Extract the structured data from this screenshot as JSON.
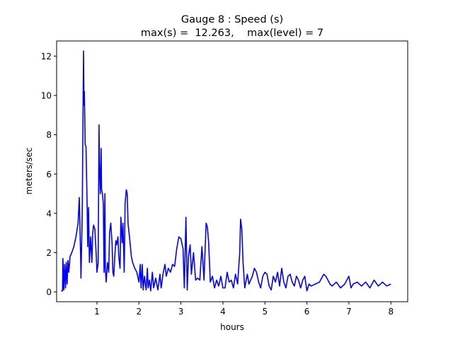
{
  "chart_data": {
    "type": "line",
    "title": "Gauge 8 : Speed (s)",
    "subtitle": "max(s) =  12.263,    max(level) = 7",
    "xlabel": "hours",
    "ylabel": "meters/sec",
    "xlim": [
      0.04,
      8.4
    ],
    "ylim": [
      -0.5,
      12.77
    ],
    "xticks": [
      1,
      2,
      3,
      4,
      5,
      6,
      7,
      8
    ],
    "yticks": [
      0,
      2,
      4,
      6,
      8,
      10,
      12
    ],
    "grid": false,
    "series": [
      {
        "name": "speed",
        "color": "#0000ff",
        "points": [
          [
            0.15,
            0.05
          ],
          [
            0.18,
            0.05
          ],
          [
            0.19,
            1.7
          ],
          [
            0.21,
            0.1
          ],
          [
            0.23,
            1.4
          ],
          [
            0.25,
            0.2
          ],
          [
            0.27,
            1.5
          ],
          [
            0.29,
            0.4
          ],
          [
            0.31,
            1.6
          ],
          [
            0.33,
            1.0
          ],
          [
            0.36,
            1.8
          ],
          [
            0.4,
            2.0
          ],
          [
            0.45,
            2.3
          ],
          [
            0.5,
            2.8
          ],
          [
            0.55,
            3.5
          ],
          [
            0.58,
            4.8
          ],
          [
            0.61,
            2.0
          ],
          [
            0.62,
            0.7
          ],
          [
            0.65,
            4.0
          ],
          [
            0.68,
            12.26
          ],
          [
            0.69,
            9.5
          ],
          [
            0.7,
            10.2
          ],
          [
            0.71,
            8.8
          ],
          [
            0.72,
            7.5
          ],
          [
            0.74,
            7.4
          ],
          [
            0.75,
            6.3
          ],
          [
            0.77,
            4.0
          ],
          [
            0.78,
            2.3
          ],
          [
            0.8,
            4.3
          ],
          [
            0.82,
            1.5
          ],
          [
            0.85,
            2.8
          ],
          [
            0.88,
            1.5
          ],
          [
            0.9,
            3.0
          ],
          [
            0.92,
            3.4
          ],
          [
            0.95,
            3.2
          ],
          [
            0.98,
            2.0
          ],
          [
            1.0,
            1.0
          ],
          [
            1.03,
            1.5
          ],
          [
            1.05,
            8.5
          ],
          [
            1.06,
            6.5
          ],
          [
            1.08,
            5.0
          ],
          [
            1.1,
            7.3
          ],
          [
            1.11,
            5.2
          ],
          [
            1.13,
            5.0
          ],
          [
            1.15,
            4.5
          ],
          [
            1.17,
            1.0
          ],
          [
            1.19,
            5.0
          ],
          [
            1.2,
            1.2
          ],
          [
            1.22,
            0.5
          ],
          [
            1.25,
            1.5
          ],
          [
            1.28,
            1.0
          ],
          [
            1.3,
            3.0
          ],
          [
            1.33,
            3.5
          ],
          [
            1.36,
            2.5
          ],
          [
            1.38,
            1.0
          ],
          [
            1.4,
            0.8
          ],
          [
            1.43,
            2.0
          ],
          [
            1.45,
            2.6
          ],
          [
            1.47,
            2.4
          ],
          [
            1.5,
            2.8
          ],
          [
            1.52,
            1.8
          ],
          [
            1.55,
            1.2
          ],
          [
            1.57,
            3.8
          ],
          [
            1.6,
            2.5
          ],
          [
            1.62,
            3.5
          ],
          [
            1.65,
            1.0
          ],
          [
            1.67,
            4.5
          ],
          [
            1.7,
            5.2
          ],
          [
            1.72,
            5.0
          ],
          [
            1.74,
            3.5
          ],
          [
            1.78,
            2.7
          ],
          [
            1.82,
            1.8
          ],
          [
            1.85,
            1.5
          ],
          [
            1.9,
            1.2
          ],
          [
            1.95,
            1.0
          ],
          [
            2.0,
            0.5
          ],
          [
            2.03,
            1.4
          ],
          [
            2.05,
            0.2
          ],
          [
            2.08,
            1.4
          ],
          [
            2.1,
            0.1
          ],
          [
            2.13,
            0.8
          ],
          [
            2.17,
            0.1
          ],
          [
            2.2,
            1.2
          ],
          [
            2.22,
            0.2
          ],
          [
            2.25,
            0.6
          ],
          [
            2.28,
            0.05
          ],
          [
            2.32,
            1.0
          ],
          [
            2.35,
            0.2
          ],
          [
            2.4,
            0.7
          ],
          [
            2.45,
            0.1
          ],
          [
            2.5,
            0.9
          ],
          [
            2.53,
            0.2
          ],
          [
            2.58,
            1.0
          ],
          [
            2.62,
            1.4
          ],
          [
            2.65,
            0.8
          ],
          [
            2.7,
            1.2
          ],
          [
            2.75,
            1.0
          ],
          [
            2.8,
            1.4
          ],
          [
            2.85,
            1.3
          ],
          [
            2.9,
            2.2
          ],
          [
            2.95,
            2.8
          ],
          [
            3.0,
            2.7
          ],
          [
            3.05,
            2.2
          ],
          [
            3.08,
            0.2
          ],
          [
            3.12,
            3.8
          ],
          [
            3.15,
            0.1
          ],
          [
            3.18,
            1.8
          ],
          [
            3.22,
            2.4
          ],
          [
            3.25,
            0.9
          ],
          [
            3.3,
            2.0
          ],
          [
            3.35,
            0.6
          ],
          [
            3.4,
            0.7
          ],
          [
            3.45,
            0.6
          ],
          [
            3.5,
            2.3
          ],
          [
            3.55,
            0.6
          ],
          [
            3.6,
            3.5
          ],
          [
            3.63,
            3.3
          ],
          [
            3.66,
            2.5
          ],
          [
            3.7,
            0.5
          ],
          [
            3.75,
            0.8
          ],
          [
            3.8,
            0.2
          ],
          [
            3.85,
            0.6
          ],
          [
            3.9,
            0.3
          ],
          [
            3.95,
            0.8
          ],
          [
            4.0,
            0.2
          ],
          [
            4.05,
            0.2
          ],
          [
            4.1,
            1.0
          ],
          [
            4.15,
            0.5
          ],
          [
            4.2,
            0.6
          ],
          [
            4.25,
            0.2
          ],
          [
            4.3,
            0.9
          ],
          [
            4.35,
            0.4
          ],
          [
            4.4,
            2.0
          ],
          [
            4.42,
            3.7
          ],
          [
            4.45,
            3.2
          ],
          [
            4.48,
            1.5
          ],
          [
            4.52,
            0.2
          ],
          [
            4.58,
            0.9
          ],
          [
            4.62,
            0.4
          ],
          [
            4.7,
            0.8
          ],
          [
            4.75,
            1.2
          ],
          [
            4.8,
            1.0
          ],
          [
            4.85,
            0.5
          ],
          [
            4.9,
            0.2
          ],
          [
            4.95,
            0.8
          ],
          [
            5.0,
            1.0
          ],
          [
            5.05,
            0.9
          ],
          [
            5.1,
            0.3
          ],
          [
            5.15,
            0.1
          ],
          [
            5.2,
            0.8
          ],
          [
            5.25,
            0.5
          ],
          [
            5.3,
            1.0
          ],
          [
            5.35,
            0.3
          ],
          [
            5.4,
            1.2
          ],
          [
            5.45,
            0.5
          ],
          [
            5.5,
            0.2
          ],
          [
            5.55,
            0.8
          ],
          [
            5.6,
            0.9
          ],
          [
            5.65,
            0.5
          ],
          [
            5.7,
            0.3
          ],
          [
            5.75,
            0.8
          ],
          [
            5.8,
            0.6
          ],
          [
            5.85,
            0.2
          ],
          [
            5.9,
            0.6
          ],
          [
            5.95,
            0.8
          ],
          [
            6.0,
            0.05
          ],
          [
            6.05,
            0.4
          ],
          [
            6.1,
            0.3
          ],
          [
            6.2,
            0.4
          ],
          [
            6.3,
            0.5
          ],
          [
            6.4,
            0.9
          ],
          [
            6.45,
            0.8
          ],
          [
            6.5,
            0.6
          ],
          [
            6.55,
            0.4
          ],
          [
            6.6,
            0.3
          ],
          [
            6.7,
            0.5
          ],
          [
            6.8,
            0.2
          ],
          [
            6.9,
            0.4
          ],
          [
            7.0,
            0.8
          ],
          [
            7.05,
            0.2
          ],
          [
            7.1,
            0.4
          ],
          [
            7.2,
            0.5
          ],
          [
            7.3,
            0.3
          ],
          [
            7.4,
            0.5
          ],
          [
            7.5,
            0.2
          ],
          [
            7.6,
            0.6
          ],
          [
            7.7,
            0.3
          ],
          [
            7.8,
            0.5
          ],
          [
            7.9,
            0.3
          ],
          [
            8.0,
            0.4
          ]
        ]
      }
    ]
  }
}
